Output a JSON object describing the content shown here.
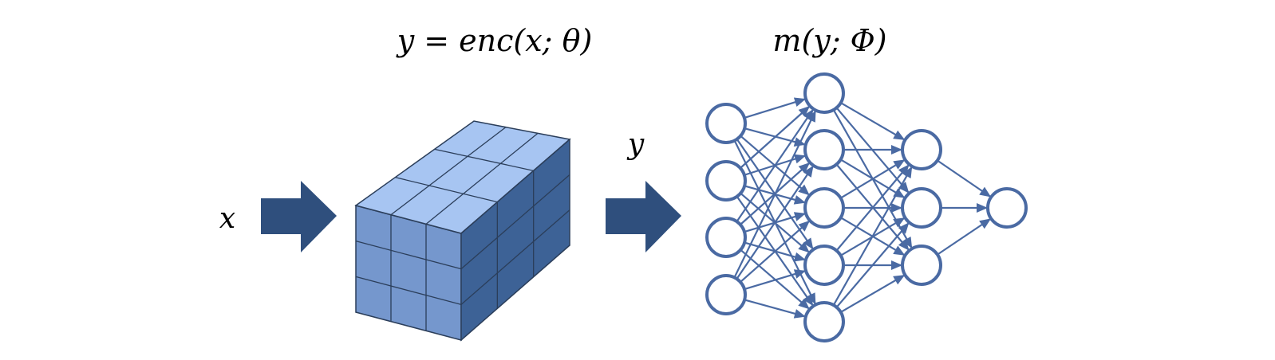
{
  "labels": {
    "encoder_formula": "y = enc(x; θ)",
    "model_formula": "m(y; Φ)",
    "input_symbol": "x",
    "encoded_symbol": "y"
  },
  "colors": {
    "arrow": "#2f4f7d",
    "cube_front": "#7597cd",
    "cube_top": "#a7c5f2",
    "cube_side": "#3d6296",
    "cube_edge": "#2b3e5a",
    "network": "#4a6aa3"
  },
  "encoder_block": {
    "rows": 3,
    "cols": 3,
    "depth": 3
  },
  "network": {
    "layers": [
      4,
      5,
      3,
      1
    ]
  }
}
